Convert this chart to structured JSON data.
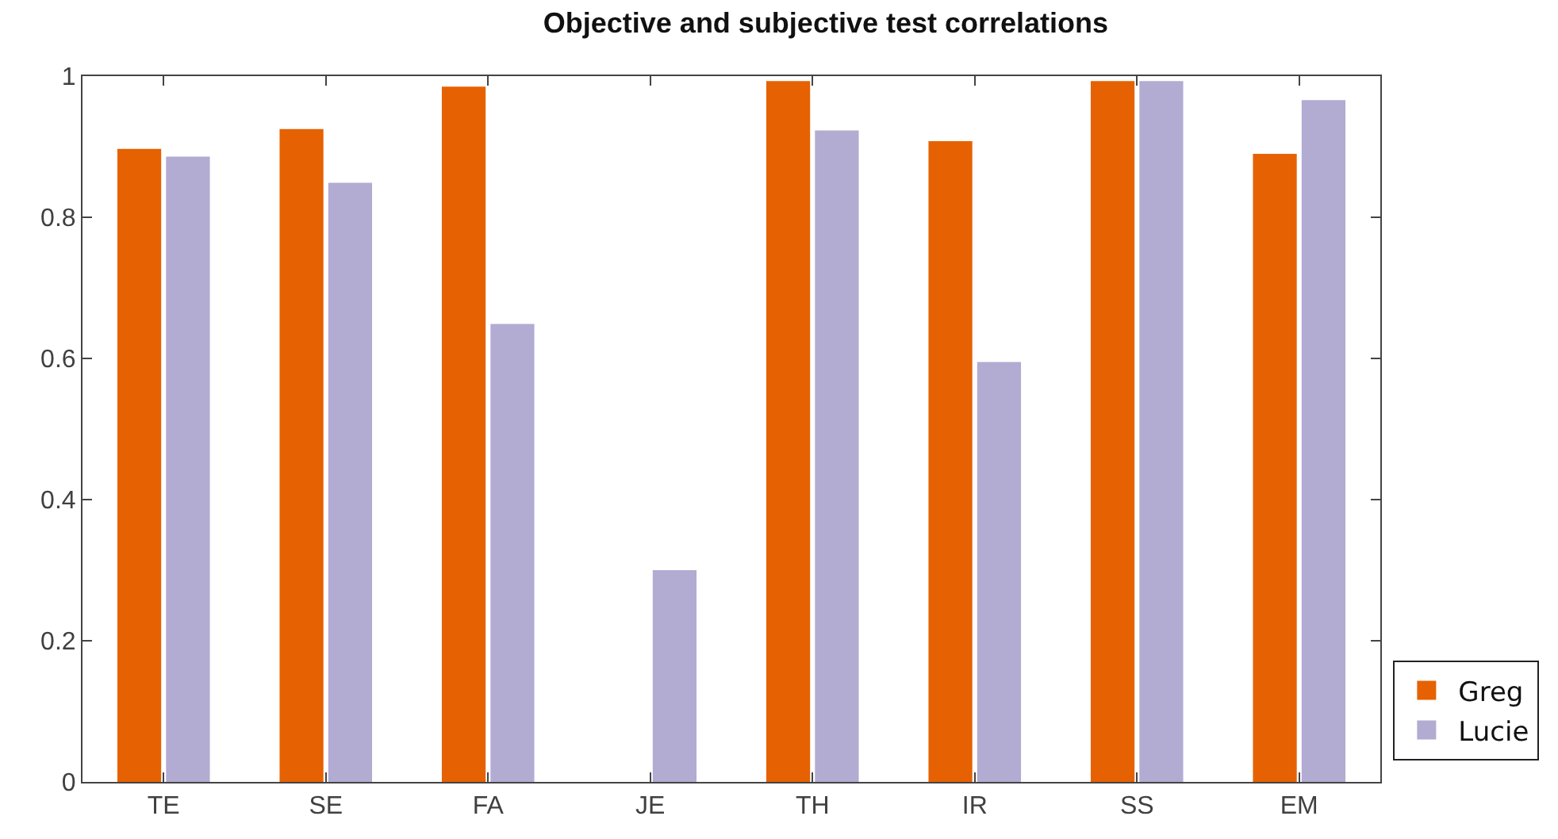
{
  "chart_data": {
    "type": "bar",
    "title": "Objective and subjective test correlations",
    "categories": [
      "TE",
      "SE",
      "FA",
      "JE",
      "TH",
      "IR",
      "SS",
      "EM"
    ],
    "series": [
      {
        "name": "Greg",
        "color": "#e66101",
        "values": [
          0.897,
          0.925,
          0.985,
          0,
          0.993,
          0.908,
          0.993,
          0.89
        ]
      },
      {
        "name": "Lucie",
        "color": "#b2abd2",
        "values": [
          0.886,
          0.849,
          0.649,
          0.3,
          0.923,
          0.595,
          0.993,
          0.966
        ]
      }
    ],
    "ylim": [
      0,
      1
    ],
    "yticks": [
      0,
      0.2,
      0.4,
      0.6,
      0.8,
      1
    ],
    "legend": "right"
  }
}
